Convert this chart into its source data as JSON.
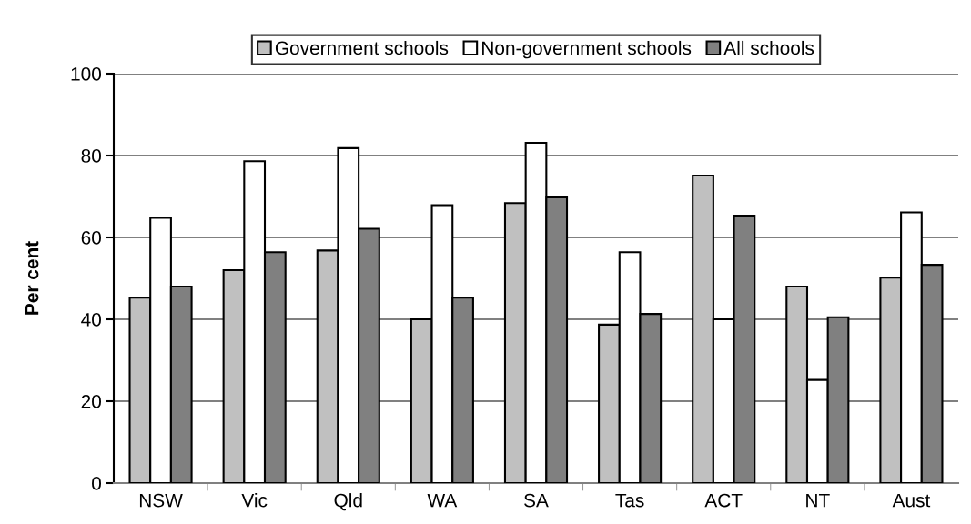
{
  "chart_data": {
    "type": "bar",
    "ylabel": "Per cent",
    "categories": [
      "NSW",
      "Vic",
      "Qld",
      "WA",
      "SA",
      "Tas",
      "ACT",
      "NT",
      "Aust"
    ],
    "series": [
      {
        "name": "Government schools",
        "color": "#c0c0c0",
        "values": [
          45.3,
          52.0,
          56.8,
          40.0,
          68.4,
          38.7,
          75.1,
          48.0,
          50.2
        ]
      },
      {
        "name": "Non-government schools",
        "color": "#ffffff",
        "values": [
          64.8,
          78.6,
          81.8,
          67.9,
          83.1,
          56.4,
          40.0,
          25.2,
          66.1
        ]
      },
      {
        "name": "All schools",
        "color": "#808080",
        "values": [
          48.0,
          56.4,
          62.1,
          45.3,
          69.8,
          41.3,
          65.3,
          40.5,
          53.3
        ]
      }
    ],
    "ylim": [
      0,
      100
    ],
    "yticks": [
      0,
      20,
      40,
      60,
      80,
      100
    ],
    "grid": "y",
    "legend": "top"
  }
}
